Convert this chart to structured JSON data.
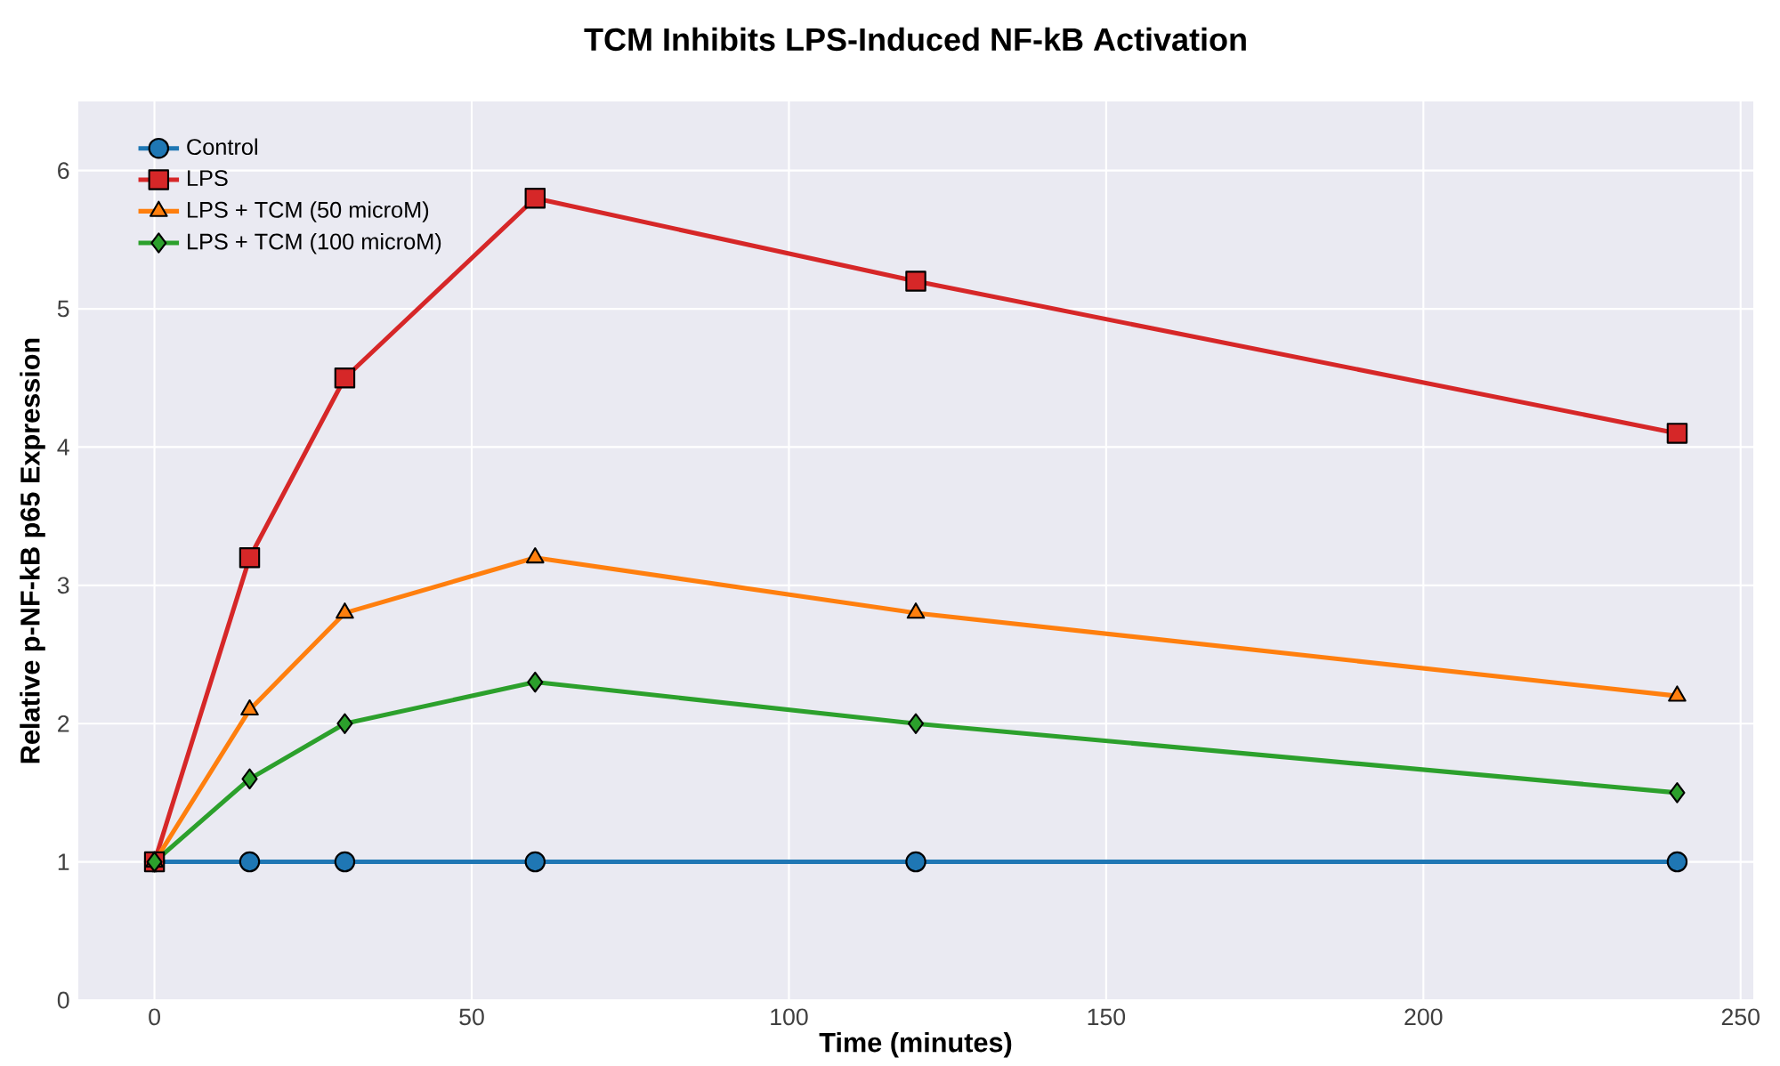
{
  "chart_data": {
    "type": "line",
    "title": "TCM Inhibits LPS-Induced NF-kB Activation",
    "xlabel": "Time (minutes)",
    "ylabel": "Relative p-NF-kB p65 Expression",
    "x": [
      0,
      15,
      30,
      60,
      120,
      240
    ],
    "series": [
      {
        "name": "Control",
        "color": "#1f77b4",
        "marker": "circle",
        "values": [
          1,
          1,
          1,
          1,
          1,
          1
        ]
      },
      {
        "name": "LPS",
        "color": "#d62728",
        "marker": "square",
        "values": [
          1,
          3.2,
          4.5,
          5.8,
          5.2,
          4.1
        ]
      },
      {
        "name": "LPS + TCM (50 microM)",
        "color": "#ff7f0e",
        "marker": "triangle",
        "values": [
          1,
          2.1,
          2.8,
          3.2,
          2.8,
          2.2
        ]
      },
      {
        "name": "LPS + TCM (100 microM)",
        "color": "#2ca02c",
        "marker": "diamond",
        "values": [
          1,
          1.6,
          2.0,
          2.3,
          2.0,
          1.5
        ]
      }
    ],
    "xlim": [
      -12,
      252
    ],
    "ylim": [
      0,
      6.5
    ],
    "xticks": [
      0,
      50,
      100,
      150,
      200,
      250
    ],
    "yticks": [
      0,
      1,
      2,
      3,
      4,
      5,
      6
    ],
    "grid": true,
    "legend": "top left",
    "line_style": "solid"
  }
}
